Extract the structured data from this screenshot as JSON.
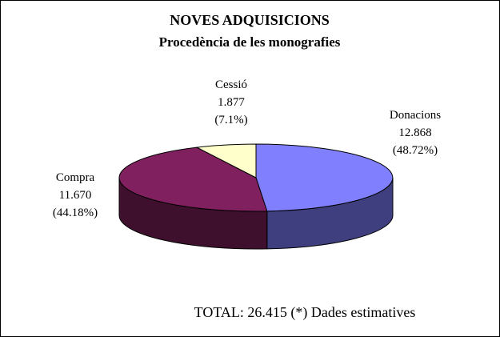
{
  "chart_data": {
    "type": "pie",
    "title": "NOVES ADQUISICIONS",
    "subtitle": "Procedència de les monografies",
    "slices": [
      {
        "label": "Donacions",
        "value_text": "12.868",
        "percent_text": "(48.72%)",
        "value": 12868,
        "percent": 48.72,
        "color": "#8080FF",
        "side_color": "#3F3F7F"
      },
      {
        "label": "Compra",
        "value_text": "11.670",
        "percent_text": "(44.18%)",
        "value": 11670,
        "percent": 44.18,
        "color": "#80205F",
        "side_color": "#3F102E"
      },
      {
        "label": "Cessió",
        "value_text": "1.877",
        "percent_text": "(7.1%)",
        "value": 1877,
        "percent": 7.1,
        "color": "#FFFFCC",
        "side_color": "#7F7F66"
      }
    ],
    "footer": "TOTAL: 26.415 (*) Dades estimatives",
    "legend": "none",
    "style": "3d"
  }
}
